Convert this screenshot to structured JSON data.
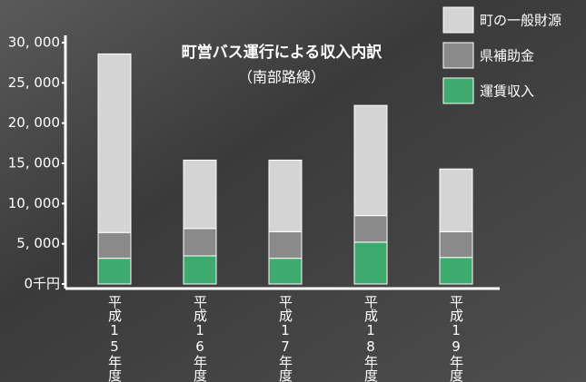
{
  "chart_data": {
    "type": "stacked_bar",
    "title": "町営バス運行による収入内訳",
    "subtitle": "（南部路線）",
    "categories": [
      "平成15年度",
      "平成16年度",
      "平成17年度",
      "平成18年度",
      "平成19年度"
    ],
    "series": [
      {
        "name": "運賃収入",
        "color": "#3daa6e",
        "values": [
          3200,
          3500,
          3200,
          5200,
          3300
        ]
      },
      {
        "name": "県補助金",
        "color": "#8a8a8a",
        "values": [
          3200,
          3400,
          3300,
          3300,
          3200
        ]
      },
      {
        "name": "町の一般財源",
        "color": "#d4d4d4",
        "values": [
          22200,
          8500,
          8900,
          13700,
          7800
        ]
      }
    ],
    "ylim": [
      0,
      30000
    ],
    "yticks": [
      {
        "value": 0,
        "label": "0千円"
      },
      {
        "value": 5000,
        "label": "5, 000"
      },
      {
        "value": 10000,
        "label": "10, 000"
      },
      {
        "value": 15000,
        "label": "15, 000"
      },
      {
        "value": 20000,
        "label": "20, 000"
      },
      {
        "value": 25000,
        "label": "25, 000"
      },
      {
        "value": 30000,
        "label": "30, 000"
      }
    ],
    "legend": "upper right"
  }
}
